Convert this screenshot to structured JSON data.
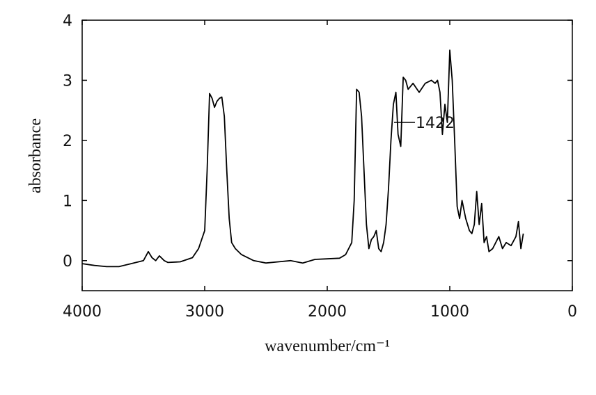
{
  "chart_data": {
    "type": "line",
    "xlabel": "wavenumber/cm⁻¹",
    "ylabel": "absorbance",
    "annotation": "1422",
    "xlim": [
      4000,
      0
    ],
    "ylim": [
      -0.5,
      4
    ],
    "xticks": [
      4000,
      3000,
      2000,
      1000,
      0
    ],
    "yticks": [
      0,
      1,
      2,
      3,
      4
    ],
    "color": "#000000",
    "x": [
      4000,
      3900,
      3800,
      3700,
      3600,
      3500,
      3460,
      3430,
      3400,
      3370,
      3330,
      3300,
      3200,
      3100,
      3050,
      3000,
      2980,
      2960,
      2940,
      2920,
      2900,
      2880,
      2860,
      2840,
      2820,
      2800,
      2780,
      2750,
      2700,
      2600,
      2500,
      2400,
      2300,
      2200,
      2100,
      2000,
      1900,
      1850,
      1800,
      1780,
      1760,
      1740,
      1720,
      1700,
      1680,
      1660,
      1640,
      1620,
      1600,
      1580,
      1560,
      1540,
      1520,
      1500,
      1480,
      1460,
      1440,
      1422,
      1400,
      1380,
      1360,
      1340,
      1300,
      1250,
      1200,
      1150,
      1120,
      1100,
      1080,
      1060,
      1040,
      1020,
      1000,
      980,
      960,
      940,
      920,
      900,
      870,
      840,
      820,
      800,
      780,
      760,
      740,
      720,
      700,
      680,
      650,
      600,
      570,
      540,
      500,
      460,
      440,
      420,
      400
    ],
    "values": [
      -0.05,
      -0.08,
      -0.1,
      -0.1,
      -0.05,
      0.0,
      0.15,
      0.05,
      0.0,
      0.08,
      0.0,
      -0.03,
      -0.02,
      0.05,
      0.2,
      0.5,
      1.5,
      2.78,
      2.7,
      2.55,
      2.65,
      2.7,
      2.72,
      2.4,
      1.5,
      0.7,
      0.3,
      0.2,
      0.1,
      0.0,
      -0.04,
      -0.02,
      0.0,
      -0.04,
      0.02,
      0.03,
      0.04,
      0.1,
      0.3,
      1.0,
      2.85,
      2.8,
      2.4,
      1.5,
      0.6,
      0.2,
      0.35,
      0.4,
      0.5,
      0.2,
      0.15,
      0.3,
      0.6,
      1.2,
      2.0,
      2.6,
      2.8,
      2.1,
      1.9,
      3.05,
      3.0,
      2.85,
      2.95,
      2.8,
      2.95,
      3.0,
      2.95,
      3.0,
      2.8,
      2.1,
      2.6,
      2.3,
      3.5,
      3.0,
      2.0,
      0.9,
      0.7,
      1.0,
      0.7,
      0.5,
      0.45,
      0.6,
      1.15,
      0.6,
      0.95,
      0.3,
      0.4,
      0.15,
      0.2,
      0.4,
      0.2,
      0.3,
      0.25,
      0.4,
      0.65,
      0.2,
      0.45
    ]
  }
}
